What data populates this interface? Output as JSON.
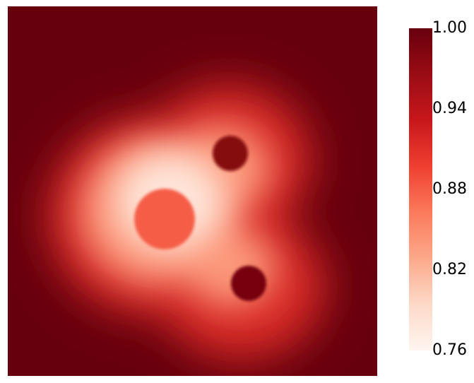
{
  "chart_data": {
    "type": "heatmap",
    "title": "",
    "colormap": "Reds",
    "colorbar": {
      "min": 0.76,
      "max": 1.0,
      "ticks": [
        "1.00",
        "0.94",
        "0.88",
        "0.82",
        "0.76"
      ],
      "colors": [
        "#fff5f0",
        "#fdd9c8",
        "#fca98a",
        "#fb7a5c",
        "#ef3f31",
        "#c8171c",
        "#9a0c14",
        "#67000d"
      ]
    },
    "background_value": 1.0,
    "field": {
      "min_value": 0.78,
      "inclusions": [
        {
          "name": "large-inclusion",
          "value": 0.88
        },
        {
          "name": "upper-small-inclusion",
          "value": 0.98
        },
        {
          "name": "lower-small-inclusion",
          "value": 0.99
        }
      ]
    }
  }
}
